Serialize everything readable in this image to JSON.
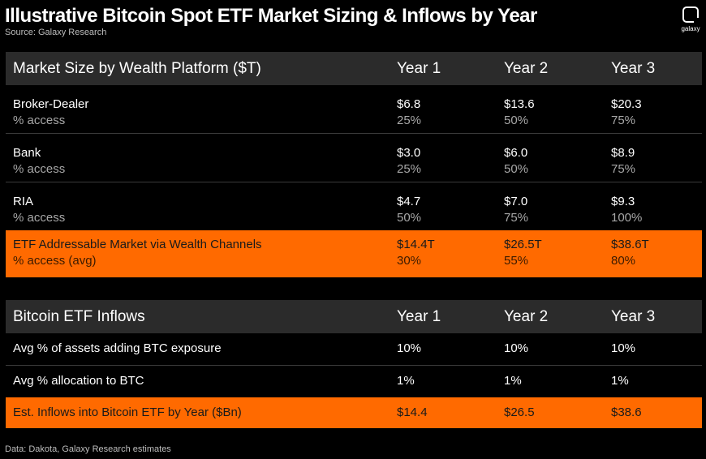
{
  "title": "Illustrative Bitcoin Spot ETF Market Sizing & Inflows by Year",
  "subtitle": "Source: Galaxy Research",
  "footer": "Data: Dakota, Galaxy Research estimates",
  "logo_text": "galaxy",
  "chart_data": [
    {
      "type": "table",
      "header": [
        "Market Size by Wealth Platform ($T)",
        "Year 1",
        "Year 2",
        "Year 3"
      ],
      "rows": [
        {
          "label": "Broker-Dealer",
          "sublabel": "% access",
          "values": [
            "$6.8",
            "$13.6",
            "$20.3"
          ],
          "subvalues": [
            "25%",
            "50%",
            "75%"
          ]
        },
        {
          "label": "Bank",
          "sublabel": "% access",
          "values": [
            "$3.0",
            "$6.0",
            "$8.9"
          ],
          "subvalues": [
            "25%",
            "50%",
            "75%"
          ]
        },
        {
          "label": "RIA",
          "sublabel": "% access",
          "values": [
            "$4.7",
            "$7.0",
            "$9.3"
          ],
          "subvalues": [
            "50%",
            "75%",
            "100%"
          ]
        },
        {
          "label": "ETF Addressable Market via Wealth Channels",
          "sublabel": "% access (avg)",
          "values": [
            "$14.4T",
            "$26.5T",
            "$38.6T"
          ],
          "subvalues": [
            "30%",
            "55%",
            "80%"
          ]
        }
      ]
    },
    {
      "type": "table",
      "header": [
        "Bitcoin ETF Inflows",
        "Year 1",
        "Year 2",
        "Year 3"
      ],
      "rows": [
        {
          "label": "Avg % of assets adding BTC exposure",
          "values": [
            "10%",
            "10%",
            "10%"
          ]
        },
        {
          "label": "Avg % allocation to BTC",
          "values": [
            "1%",
            "1%",
            "1%"
          ]
        },
        {
          "label": "Est. Inflows into Bitcoin ETF by Year ($Bn)",
          "values": [
            "$14.4",
            "$26.5",
            "$38.6"
          ]
        }
      ]
    }
  ],
  "colors": {
    "highlight": "#ff6a00",
    "header_bg": "#2b2b2b",
    "background": "#000000"
  }
}
